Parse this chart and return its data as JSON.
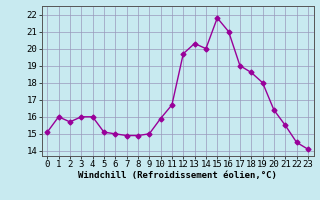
{
  "x": [
    0,
    1,
    2,
    3,
    4,
    5,
    6,
    7,
    8,
    9,
    10,
    11,
    12,
    13,
    14,
    15,
    16,
    17,
    18,
    19,
    20,
    21,
    22,
    23
  ],
  "y": [
    15.1,
    16.0,
    15.7,
    16.0,
    16.0,
    15.1,
    15.0,
    14.9,
    14.9,
    15.0,
    15.9,
    16.7,
    19.7,
    20.3,
    20.0,
    21.8,
    21.0,
    19.0,
    18.6,
    18.0,
    16.4,
    15.5,
    14.5,
    14.1
  ],
  "line_color": "#990099",
  "marker": "D",
  "markersize": 2.5,
  "linewidth": 1.0,
  "bg_color": "#c8eaf0",
  "grid_color": "#9999bb",
  "xlabel": "Windchill (Refroidissement éolien,°C)",
  "xlabel_fontsize": 6.5,
  "xtick_labels": [
    "0",
    "1",
    "2",
    "3",
    "4",
    "5",
    "6",
    "7",
    "8",
    "9",
    "10",
    "11",
    "12",
    "13",
    "14",
    "15",
    "16",
    "17",
    "18",
    "19",
    "20",
    "21",
    "22",
    "23"
  ],
  "ylim": [
    13.7,
    22.5
  ],
  "yticks": [
    14,
    15,
    16,
    17,
    18,
    19,
    20,
    21,
    22
  ],
  "tick_fontsize": 6.5,
  "fig_width": 3.2,
  "fig_height": 2.0,
  "dpi": 100
}
